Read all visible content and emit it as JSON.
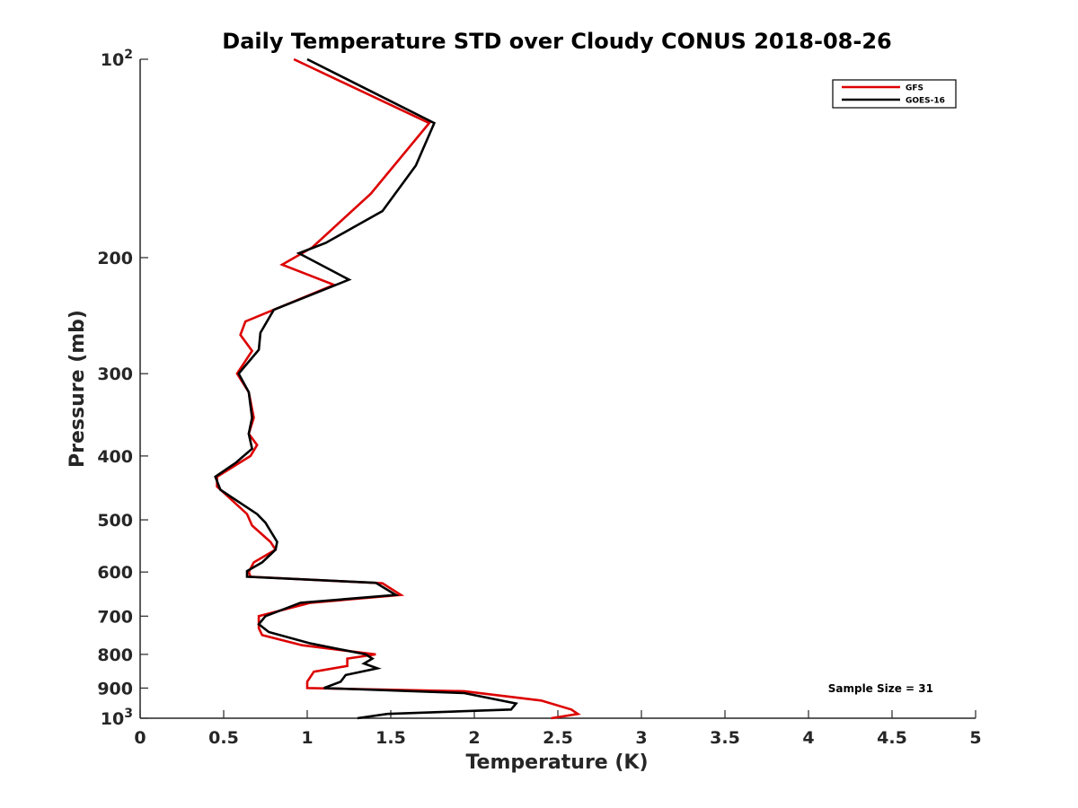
{
  "chart_data": {
    "type": "line",
    "title": "Daily Temperature STD over Cloudy CONUS 2018-08-26",
    "xlabel": "Temperature (K)",
    "ylabel": "Pressure (mb)",
    "xlim": [
      0,
      5
    ],
    "ylim": [
      1000,
      100
    ],
    "y_scale": "log",
    "y_reversed": true,
    "grid": false,
    "legend_position": "top-right",
    "x_ticks": [
      "0",
      "0.5",
      "1",
      "1.5",
      "2",
      "2.5",
      "3",
      "3.5",
      "4",
      "4.5",
      "5"
    ],
    "y_ticks": [
      {
        "value": 100,
        "base": "10",
        "exp": "2"
      },
      {
        "value": 200,
        "label": "200"
      },
      {
        "value": 300,
        "label": "300"
      },
      {
        "value": 400,
        "label": "400"
      },
      {
        "value": 500,
        "label": "500"
      },
      {
        "value": 600,
        "label": "600"
      },
      {
        "value": 700,
        "label": "700"
      },
      {
        "value": 800,
        "label": "800"
      },
      {
        "value": 900,
        "label": "900"
      },
      {
        "value": 1000,
        "base": "10",
        "exp": "3"
      }
    ],
    "annotation": "Sample Size = 31",
    "series": [
      {
        "name": "GFS",
        "color": "#dd0000",
        "points": [
          [
            0.92,
            100
          ],
          [
            1.73,
            125
          ],
          [
            1.38,
            160
          ],
          [
            1.03,
            193
          ],
          [
            0.85,
            205
          ],
          [
            1.16,
            220
          ],
          [
            0.63,
            250
          ],
          [
            0.6,
            262
          ],
          [
            0.67,
            277
          ],
          [
            0.58,
            300
          ],
          [
            0.65,
            320
          ],
          [
            0.68,
            350
          ],
          [
            0.65,
            370
          ],
          [
            0.7,
            385
          ],
          [
            0.66,
            400
          ],
          [
            0.46,
            430
          ],
          [
            0.46,
            445
          ],
          [
            0.53,
            462
          ],
          [
            0.64,
            490
          ],
          [
            0.67,
            510
          ],
          [
            0.78,
            540
          ],
          [
            0.81,
            555
          ],
          [
            0.68,
            580
          ],
          [
            0.65,
            600
          ],
          [
            0.66,
            610
          ],
          [
            1.45,
            624
          ],
          [
            1.56,
            650
          ],
          [
            1.02,
            668
          ],
          [
            0.71,
            700
          ],
          [
            0.71,
            730
          ],
          [
            0.73,
            748
          ],
          [
            0.97,
            775
          ],
          [
            1.41,
            800
          ],
          [
            1.24,
            812
          ],
          [
            1.24,
            833
          ],
          [
            1.04,
            850
          ],
          [
            1.0,
            880
          ],
          [
            1.0,
            900
          ],
          [
            1.94,
            910
          ],
          [
            2.4,
            940
          ],
          [
            2.58,
            970
          ],
          [
            2.62,
            985
          ],
          [
            2.46,
            1000
          ]
        ]
      },
      {
        "name": "GOES-16",
        "color": "#000000",
        "points": [
          [
            1.0,
            100
          ],
          [
            1.76,
            125
          ],
          [
            1.65,
            145
          ],
          [
            1.45,
            170
          ],
          [
            1.11,
            190
          ],
          [
            0.95,
            197
          ],
          [
            1.25,
            216
          ],
          [
            0.8,
            240
          ],
          [
            0.72,
            260
          ],
          [
            0.71,
            276
          ],
          [
            0.59,
            300
          ],
          [
            0.65,
            320
          ],
          [
            0.67,
            350
          ],
          [
            0.65,
            370
          ],
          [
            0.67,
            390
          ],
          [
            0.57,
            410
          ],
          [
            0.45,
            430
          ],
          [
            0.48,
            450
          ],
          [
            0.7,
            490
          ],
          [
            0.75,
            505
          ],
          [
            0.82,
            540
          ],
          [
            0.81,
            555
          ],
          [
            0.73,
            580
          ],
          [
            0.64,
            598
          ],
          [
            0.64,
            610
          ],
          [
            1.41,
            623
          ],
          [
            1.53,
            650
          ],
          [
            0.96,
            668
          ],
          [
            0.75,
            700
          ],
          [
            0.71,
            720
          ],
          [
            0.77,
            740
          ],
          [
            1.02,
            770
          ],
          [
            1.35,
            800
          ],
          [
            1.39,
            812
          ],
          [
            1.34,
            826
          ],
          [
            1.42,
            840
          ],
          [
            1.23,
            860
          ],
          [
            1.2,
            880
          ],
          [
            1.1,
            900
          ],
          [
            1.94,
            916
          ],
          [
            2.25,
            950
          ],
          [
            2.22,
            970
          ],
          [
            1.48,
            985
          ],
          [
            1.3,
            1000
          ]
        ]
      }
    ]
  }
}
